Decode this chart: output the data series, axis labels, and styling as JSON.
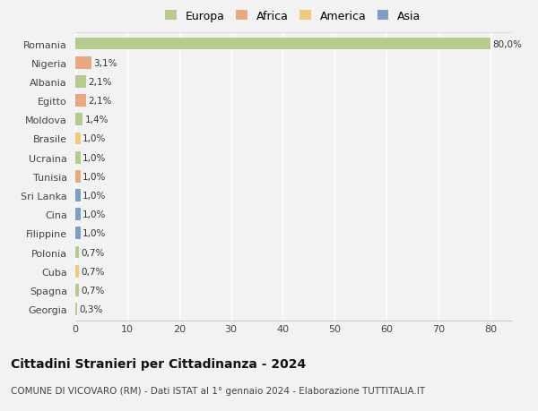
{
  "categories": [
    "Romania",
    "Nigeria",
    "Albania",
    "Egitto",
    "Moldova",
    "Brasile",
    "Ucraina",
    "Tunisia",
    "Sri Lanka",
    "Cina",
    "Filippine",
    "Polonia",
    "Cuba",
    "Spagna",
    "Georgia"
  ],
  "values": [
    80.0,
    3.1,
    2.1,
    2.1,
    1.4,
    1.0,
    1.0,
    1.0,
    1.0,
    1.0,
    1.0,
    0.7,
    0.7,
    0.7,
    0.3
  ],
  "labels": [
    "80,0%",
    "3,1%",
    "2,1%",
    "2,1%",
    "1,4%",
    "1,0%",
    "1,0%",
    "1,0%",
    "1,0%",
    "1,0%",
    "1,0%",
    "0,7%",
    "0,7%",
    "0,7%",
    "0,3%"
  ],
  "colors": [
    "#b5cc8e",
    "#e8a97e",
    "#b5cc8e",
    "#e8a97e",
    "#b5cc8e",
    "#f0c97a",
    "#b5cc8e",
    "#e8a97e",
    "#7b9fc7",
    "#7b9fc7",
    "#7b9fc7",
    "#b5cc8e",
    "#f0c97a",
    "#b5cc8e",
    "#b5cc8e"
  ],
  "legend_labels": [
    "Europa",
    "Africa",
    "America",
    "Asia"
  ],
  "legend_colors": [
    "#b5cc8e",
    "#e8a97e",
    "#f0c97a",
    "#7b9fc7"
  ],
  "title": "Cittadini Stranieri per Cittadinanza - 2024",
  "subtitle": "COMUNE DI VICOVARO (RM) - Dati ISTAT al 1° gennaio 2024 - Elaborazione TUTTITALIA.IT",
  "xlim": [
    0,
    84
  ],
  "xticks": [
    0,
    10,
    20,
    30,
    40,
    50,
    60,
    70,
    80
  ],
  "background_color": "#f2f2f2",
  "grid_color": "#ffffff",
  "bar_height": 0.65
}
